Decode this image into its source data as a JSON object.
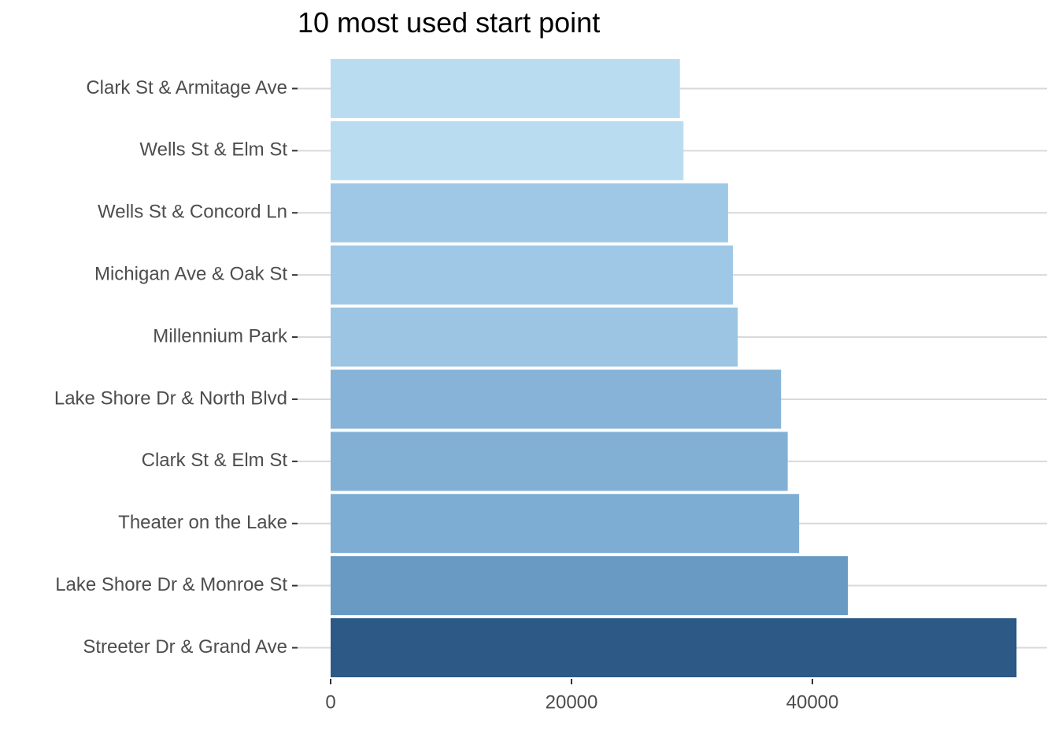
{
  "chart_data": {
    "type": "bar",
    "orientation": "horizontal",
    "title": "10 most used start point",
    "xlabel": "",
    "ylabel": "",
    "categories": [
      "Clark St & Armitage Ave",
      "Wells St & Elm St",
      "Wells St & Concord Ln",
      "Michigan Ave & Oak St",
      "Millennium Park",
      "Lake Shore Dr & North Blvd",
      "Clark St & Elm St",
      "Theater on the Lake",
      "Lake Shore Dr & Monroe St",
      "Streeter Dr & Grand Ave"
    ],
    "values": [
      29000,
      29300,
      33000,
      33400,
      33800,
      37400,
      37950,
      38900,
      42950,
      56950
    ],
    "colors": [
      "#badcf0",
      "#badcf0",
      "#9fc8e6",
      "#9fc8e6",
      "#9cc5e4",
      "#86b3d7",
      "#82b0d5",
      "#7eadd3",
      "#689ac3",
      "#2c5985"
    ],
    "xlim": [
      0,
      59000
    ],
    "xticks": [
      0,
      20000,
      40000
    ],
    "xtick_labels": [
      "0",
      "20000",
      "40000"
    ],
    "grid": "horizontal-major",
    "legend": "none"
  }
}
